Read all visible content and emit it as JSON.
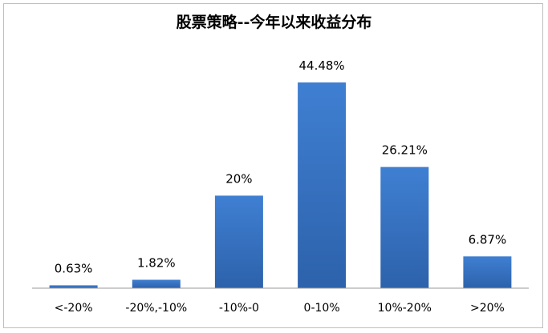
{
  "chart_data": {
    "type": "bar",
    "title": "股票策略--今年以来收益分布",
    "categories": [
      "<-20%",
      "-20%,-10%",
      "-10%-0",
      "0-10%",
      "10%-20%",
      ">20%"
    ],
    "values": [
      0.63,
      1.82,
      20,
      44.48,
      26.21,
      6.87
    ],
    "data_labels": [
      "0.63%",
      "1.82%",
      "20%",
      "44.48%",
      "26.21%",
      "6.87%"
    ],
    "ylim": [
      0,
      50
    ],
    "grid": false,
    "legend": "none",
    "bar_color": "#3a78c9",
    "bar_color_dark": "#2b5ea6"
  }
}
